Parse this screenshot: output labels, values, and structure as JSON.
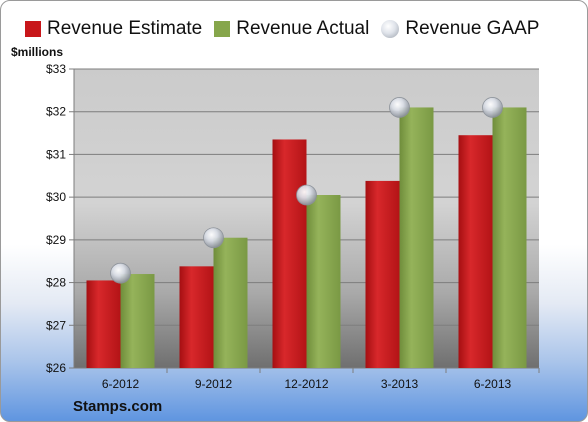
{
  "chart_data": {
    "type": "bar",
    "categories": [
      "6-2012",
      "9-2012",
      "12-2012",
      "3-2013",
      "6-2013"
    ],
    "series": [
      {
        "name": "Revenue Estimate",
        "values": [
          28.05,
          28.38,
          31.35,
          30.38,
          31.45
        ],
        "color": "#c8161a",
        "kind": "bar"
      },
      {
        "name": "Revenue Actual",
        "values": [
          28.2,
          29.05,
          30.05,
          32.1,
          32.1
        ],
        "color": "#86a64b",
        "kind": "bar"
      },
      {
        "name": "Revenue GAAP",
        "values": [
          28.22,
          29.05,
          30.05,
          32.1,
          32.1
        ],
        "color": "#c9ced6",
        "kind": "marker"
      }
    ],
    "ylabel": "$millions",
    "ylim": [
      26,
      33
    ],
    "yticks": [
      "$26",
      "$27",
      "$28",
      "$29",
      "$30",
      "$31",
      "$32",
      "$33"
    ],
    "grid": true,
    "legend_position": "top"
  },
  "source_label": "Stamps.com"
}
